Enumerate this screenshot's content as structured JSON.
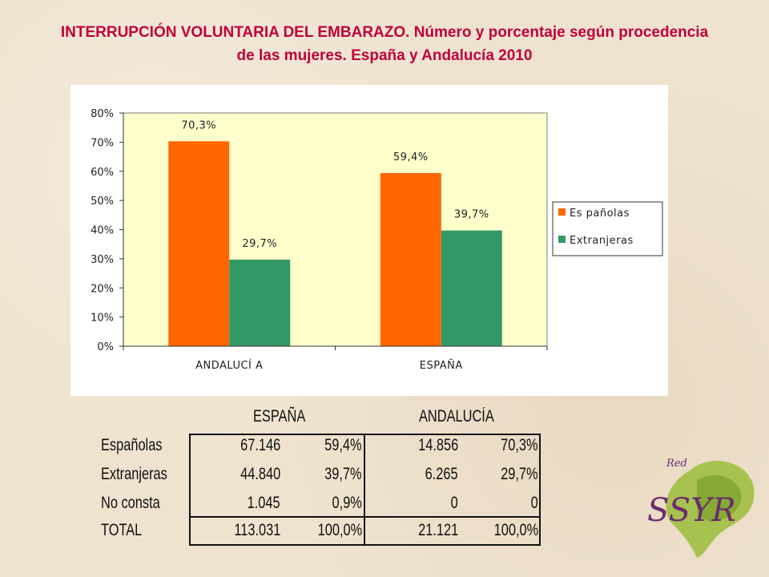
{
  "title": {
    "line1": "INTERRUPCIÓN VOLUNTARIA DEL EMBARAZO. Número y porcentaje según procedencia",
    "line2": "de las mujeres. España y Andalucía 2010"
  },
  "chart_data": {
    "type": "bar",
    "categories": [
      "ANDALUCÍ A",
      "ESPAÑA"
    ],
    "series": [
      {
        "name": "Es pañolas",
        "values": [
          70.3,
          59.4
        ],
        "labels": [
          "70,3%",
          "59,4%"
        ],
        "color": "#ff6600"
      },
      {
        "name": "Extranjeras",
        "values": [
          29.7,
          39.7
        ],
        "labels": [
          "29,7%",
          "39,7%"
        ],
        "color": "#339966"
      }
    ],
    "ylim": [
      0,
      80
    ],
    "yticks": [
      "0%",
      "10%",
      "20%",
      "30%",
      "40%",
      "50%",
      "60%",
      "70%",
      "80%"
    ],
    "plot_background": "#ffffcc",
    "grid": false,
    "legend": "right"
  },
  "table": {
    "groups": [
      "ESPAÑA",
      "ANDALUCÍA"
    ],
    "rows": [
      {
        "label": "Españolas",
        "values": [
          "67.146",
          "59,4%",
          "14.856",
          "70,3%"
        ]
      },
      {
        "label": "Extranjeras",
        "values": [
          "44.840",
          "39,7%",
          "6.265",
          "29,7%"
        ]
      },
      {
        "label": "No consta",
        "values": [
          "1.045",
          "0,9%",
          "0",
          "0"
        ]
      },
      {
        "label": "TOTAL",
        "values": [
          "113.031",
          "100,0%",
          "21.121",
          "100,0%"
        ]
      }
    ]
  },
  "logo": {
    "small_text": "Red",
    "main_text": "SSYR",
    "colors": {
      "leaf": "#8fb233",
      "text": "#6a2c6e"
    }
  }
}
